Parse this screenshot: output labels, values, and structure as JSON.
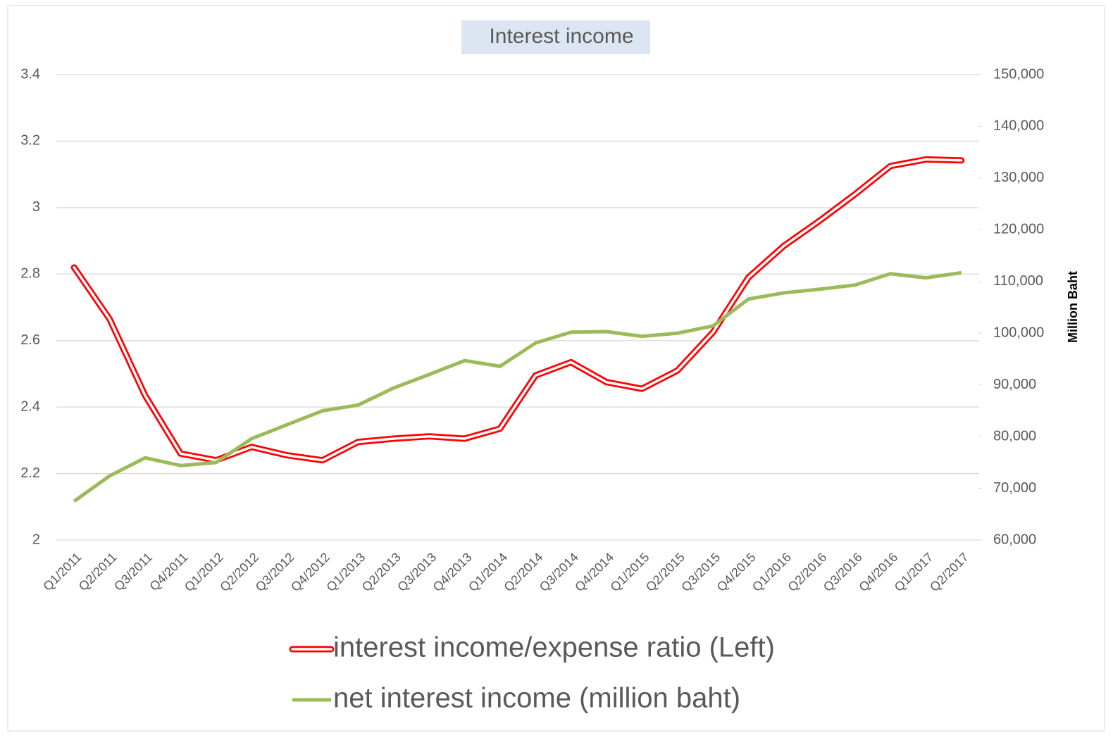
{
  "chart_data": {
    "type": "line",
    "title": "Interest income",
    "categories": [
      "Q1/2011",
      "Q2/2011",
      "Q3/2011",
      "Q4/2011",
      "Q1/2012",
      "Q2/2012",
      "Q3/2012",
      "Q4/2012",
      "Q1/2013",
      "Q2/2013",
      "Q3/2013",
      "Q4/2013",
      "Q1/2014",
      "Q2/2014",
      "Q3/2014",
      "Q4/2014",
      "Q1/2015",
      "Q2/2015",
      "Q3/2015",
      "Q4/2015",
      "Q1/2016",
      "Q2/2016",
      "Q3/2016",
      "Q4/2016",
      "Q1/2017",
      "Q2/2017"
    ],
    "series": [
      {
        "name": "interest income/expense ratio (Left)",
        "color": "#ff0000",
        "style": "double",
        "values": [
          2.82,
          2.665,
          2.435,
          2.26,
          2.24,
          2.28,
          2.255,
          2.24,
          2.295,
          2.305,
          2.312,
          2.305,
          2.335,
          2.495,
          2.535,
          2.475,
          2.455,
          2.51,
          2.625,
          2.79,
          2.885,
          2.96,
          3.04,
          3.125,
          3.145,
          3.142
        ]
      },
      {
        "name": "net interest income (million baht)",
        "color": "#9bbb59",
        "axis": "y2",
        "values": [
          67500,
          72400,
          75900,
          74400,
          75000,
          79600,
          82300,
          85000,
          86100,
          89400,
          92000,
          94700,
          93600,
          98100,
          100200,
          100300,
          99400,
          100000,
          101400,
          106600,
          107800,
          108500,
          109300,
          111500,
          110700,
          111700
        ]
      }
    ],
    "ylim": [
      2,
      3.4
    ],
    "yticks": [
      2,
      2.2,
      2.4,
      2.6,
      2.8,
      3,
      3.2,
      3.4
    ],
    "y2lim": [
      60000,
      150000
    ],
    "y2ticks": [
      {
        "value": 60000,
        "label": "60,000"
      },
      {
        "value": 70000,
        "label": "70,000"
      },
      {
        "value": 80000,
        "label": "80,000"
      },
      {
        "value": 90000,
        "label": "90,000"
      },
      {
        "value": 100000,
        "label": "100,000"
      },
      {
        "value": 110000,
        "label": "110,000"
      },
      {
        "value": 120000,
        "label": "120,000"
      },
      {
        "value": 130000,
        "label": "130,000"
      },
      {
        "value": 140000,
        "label": "140,000"
      },
      {
        "value": 150000,
        "label": "150,000"
      }
    ],
    "y2label": "Million Baht",
    "grid": true,
    "legend": "bottom"
  }
}
